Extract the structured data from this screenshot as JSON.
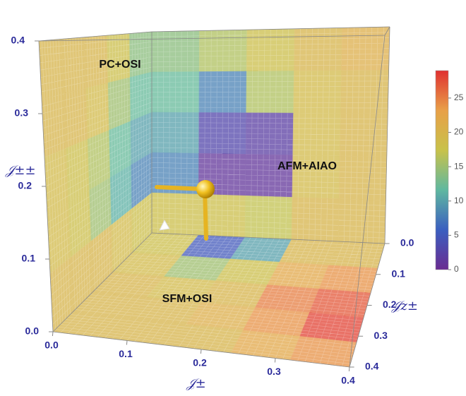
{
  "chart_data": {
    "type": "heatmap",
    "annotations": [
      "PC+OSI",
      "AFM+AIAO",
      "SFM+OSI"
    ],
    "x_label": "𝒥±",
    "y_label": "𝒥±±",
    "z_label": "𝒥z±",
    "xlim": [
      0,
      0.4
    ],
    "ylim": [
      0,
      0.4
    ],
    "zlim": [
      0,
      0.4
    ],
    "xticks": [
      {
        "value": 0,
        "label": "0.0"
      },
      0.1,
      0.2,
      0.3,
      0.4
    ],
    "yticks": [
      {
        "value": 0,
        "label": "0.0"
      },
      0.1,
      0.2,
      0.3,
      0.4
    ],
    "zticks": [
      {
        "value": 0,
        "label": "0.0"
      },
      0.1,
      0.2,
      0.3,
      0.4
    ],
    "faces": {
      "back": [
        [
          14,
          16,
          18,
          20,
          21
        ],
        [
          12,
          8,
          16,
          19,
          20
        ],
        [
          10,
          3,
          2,
          19,
          20
        ],
        [
          8,
          1,
          1,
          19,
          20
        ],
        [
          18,
          18,
          17,
          20,
          20
        ]
      ],
      "left": [
        [
          14,
          18,
          20,
          20,
          20
        ],
        [
          12,
          15,
          19,
          20,
          20
        ],
        [
          10,
          12,
          16,
          18,
          19
        ],
        [
          8,
          11,
          15,
          18,
          19
        ],
        [
          18,
          19,
          20,
          20,
          20
        ]
      ],
      "bottom": [
        [
          18,
          5,
          10,
          20,
          20
        ],
        [
          19,
          15,
          18,
          22,
          24
        ],
        [
          20,
          19,
          20,
          25,
          27
        ],
        [
          20,
          20,
          21,
          24,
          28
        ],
        [
          20,
          20,
          20,
          22,
          24
        ]
      ]
    },
    "clim": [
      0,
      29
    ],
    "cticks": [
      0,
      5,
      10,
      15,
      20,
      25
    ],
    "colormap": [
      "#6a2c91",
      "#3b5fc0",
      "#5fb8a0",
      "#c8c24a",
      "#e8a048",
      "#e03030"
    ]
  }
}
